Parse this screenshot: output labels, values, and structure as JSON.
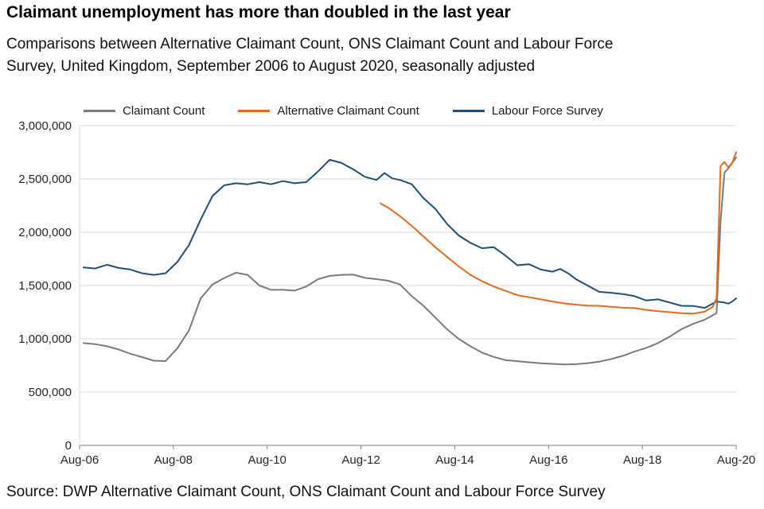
{
  "chart_data": {
    "type": "line",
    "title": "Claimant unemployment has more than doubled in the last year",
    "subtitle_lines": [
      "Comparisons between Alternative Claimant Count, ONS Claimant Count and Labour Force",
      "Survey, United Kingdom, September 2006 to August 2020, seasonally adjusted"
    ],
    "source": "Source: DWP Alternative Claimant Count, ONS Claimant Count and Labour Force Survey",
    "legend_position": "top",
    "grid": "horizontal",
    "x_axis": {
      "label": "",
      "unit": "months since Aug-2006",
      "start": "Aug-06",
      "end": "Aug-20",
      "total_months": 168,
      "ticks": [
        {
          "label": "Aug-06",
          "month": 0
        },
        {
          "label": "Aug-08",
          "month": 24
        },
        {
          "label": "Aug-10",
          "month": 48
        },
        {
          "label": "Aug-12",
          "month": 72
        },
        {
          "label": "Aug-14",
          "month": 96
        },
        {
          "label": "Aug-16",
          "month": 120
        },
        {
          "label": "Aug-18",
          "month": 144
        },
        {
          "label": "Aug-20",
          "month": 168
        }
      ]
    },
    "y_axis": {
      "label": "",
      "min": 0,
      "max": 3000000,
      "tick_step": 500000,
      "ticks": [
        {
          "value": 0,
          "label": "0"
        },
        {
          "value": 500000,
          "label": "500,000"
        },
        {
          "value": 1000000,
          "label": "1,000,000"
        },
        {
          "value": 1500000,
          "label": "1,500,000"
        },
        {
          "value": 2000000,
          "label": "2,000,000"
        },
        {
          "value": 2500000,
          "label": "2,500,000"
        },
        {
          "value": 3000000,
          "label": "3,000,000"
        }
      ]
    },
    "series": [
      {
        "name": "Claimant Count",
        "color": "#7a7a7a",
        "points": [
          [
            1,
            960000
          ],
          [
            4,
            950000
          ],
          [
            7,
            930000
          ],
          [
            10,
            900000
          ],
          [
            13,
            860000
          ],
          [
            16,
            828000
          ],
          [
            19,
            795000
          ],
          [
            22,
            790000
          ],
          [
            25,
            910000
          ],
          [
            28,
            1080000
          ],
          [
            31,
            1380000
          ],
          [
            34,
            1510000
          ],
          [
            37,
            1570000
          ],
          [
            40,
            1620000
          ],
          [
            43,
            1600000
          ],
          [
            46,
            1500000
          ],
          [
            49,
            1460000
          ],
          [
            52,
            1460000
          ],
          [
            55,
            1452000
          ],
          [
            58,
            1490000
          ],
          [
            61,
            1560000
          ],
          [
            64,
            1590000
          ],
          [
            67,
            1600000
          ],
          [
            70,
            1602000
          ],
          [
            73,
            1572000
          ],
          [
            76,
            1560000
          ],
          [
            79,
            1545000
          ],
          [
            82,
            1510000
          ],
          [
            85,
            1400000
          ],
          [
            88,
            1310000
          ],
          [
            91,
            1200000
          ],
          [
            94,
            1090000
          ],
          [
            97,
            1000000
          ],
          [
            100,
            930000
          ],
          [
            103,
            870000
          ],
          [
            106,
            830000
          ],
          [
            109,
            800000
          ],
          [
            112,
            790000
          ],
          [
            115,
            780000
          ],
          [
            118,
            770000
          ],
          [
            121,
            765000
          ],
          [
            124,
            760000
          ],
          [
            127,
            762000
          ],
          [
            130,
            772000
          ],
          [
            133,
            786000
          ],
          [
            136,
            810000
          ],
          [
            139,
            840000
          ],
          [
            142,
            880000
          ],
          [
            145,
            915000
          ],
          [
            148,
            960000
          ],
          [
            151,
            1020000
          ],
          [
            154,
            1090000
          ],
          [
            157,
            1140000
          ],
          [
            160,
            1180000
          ],
          [
            163,
            1240000
          ],
          [
            164,
            2100000
          ],
          [
            165,
            2560000
          ],
          [
            166,
            2600000
          ],
          [
            167,
            2650000
          ],
          [
            168,
            2700000
          ]
        ]
      },
      {
        "name": "Alternative Claimant Count",
        "color": "#e06b22",
        "points": [
          [
            77,
            2270000
          ],
          [
            79,
            2230000
          ],
          [
            82,
            2150000
          ],
          [
            85,
            2060000
          ],
          [
            88,
            1960000
          ],
          [
            91,
            1860000
          ],
          [
            94,
            1770000
          ],
          [
            97,
            1680000
          ],
          [
            100,
            1600000
          ],
          [
            103,
            1540000
          ],
          [
            106,
            1490000
          ],
          [
            109,
            1450000
          ],
          [
            112,
            1410000
          ],
          [
            115,
            1390000
          ],
          [
            118,
            1370000
          ],
          [
            121,
            1350000
          ],
          [
            124,
            1332000
          ],
          [
            127,
            1320000
          ],
          [
            130,
            1312000
          ],
          [
            133,
            1310000
          ],
          [
            136,
            1300000
          ],
          [
            139,
            1292000
          ],
          [
            142,
            1288000
          ],
          [
            145,
            1272000
          ],
          [
            148,
            1260000
          ],
          [
            151,
            1250000
          ],
          [
            154,
            1240000
          ],
          [
            157,
            1236000
          ],
          [
            160,
            1255000
          ],
          [
            162,
            1300000
          ],
          [
            163,
            1380000
          ],
          [
            164,
            2620000
          ],
          [
            165,
            2660000
          ],
          [
            166,
            2610000
          ],
          [
            167,
            2650000
          ],
          [
            168,
            2750000
          ]
        ]
      },
      {
        "name": "Labour Force Survey",
        "color": "#1f4e79",
        "points": [
          [
            1,
            1670000
          ],
          [
            4,
            1660000
          ],
          [
            7,
            1695000
          ],
          [
            10,
            1665000
          ],
          [
            13,
            1650000
          ],
          [
            16,
            1615000
          ],
          [
            19,
            1600000
          ],
          [
            22,
            1615000
          ],
          [
            25,
            1720000
          ],
          [
            28,
            1880000
          ],
          [
            31,
            2120000
          ],
          [
            34,
            2340000
          ],
          [
            37,
            2440000
          ],
          [
            40,
            2460000
          ],
          [
            43,
            2450000
          ],
          [
            46,
            2470000
          ],
          [
            49,
            2450000
          ],
          [
            52,
            2480000
          ],
          [
            55,
            2460000
          ],
          [
            58,
            2470000
          ],
          [
            61,
            2570000
          ],
          [
            64,
            2680000
          ],
          [
            67,
            2650000
          ],
          [
            70,
            2590000
          ],
          [
            73,
            2520000
          ],
          [
            76,
            2490000
          ],
          [
            78,
            2555000
          ],
          [
            80,
            2505000
          ],
          [
            82,
            2490000
          ],
          [
            85,
            2450000
          ],
          [
            88,
            2320000
          ],
          [
            91,
            2220000
          ],
          [
            94,
            2080000
          ],
          [
            97,
            1970000
          ],
          [
            100,
            1900000
          ],
          [
            103,
            1850000
          ],
          [
            106,
            1860000
          ],
          [
            109,
            1780000
          ],
          [
            112,
            1690000
          ],
          [
            115,
            1700000
          ],
          [
            118,
            1650000
          ],
          [
            121,
            1630000
          ],
          [
            123,
            1655000
          ],
          [
            125,
            1615000
          ],
          [
            127,
            1560000
          ],
          [
            130,
            1500000
          ],
          [
            133,
            1440000
          ],
          [
            136,
            1432000
          ],
          [
            139,
            1420000
          ],
          [
            142,
            1400000
          ],
          [
            145,
            1360000
          ],
          [
            148,
            1370000
          ],
          [
            151,
            1340000
          ],
          [
            154,
            1310000
          ],
          [
            157,
            1308000
          ],
          [
            160,
            1290000
          ],
          [
            163,
            1350000
          ],
          [
            165,
            1340000
          ],
          [
            166,
            1330000
          ],
          [
            167,
            1350000
          ],
          [
            168,
            1380000
          ]
        ]
      }
    ],
    "draw_order": [
      2,
      0,
      1
    ]
  }
}
